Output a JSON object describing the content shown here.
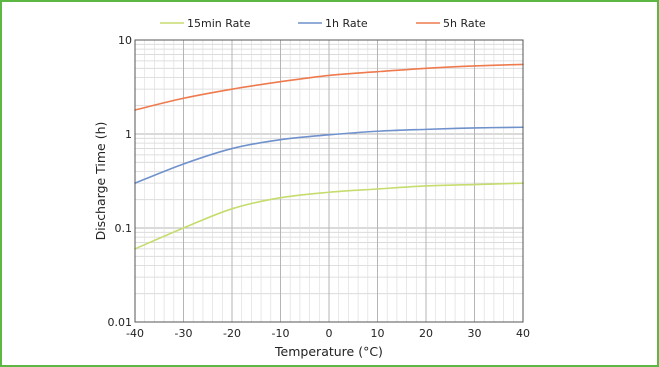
{
  "chart_data": {
    "type": "line",
    "title": "",
    "xlabel": "Temperature (°C)",
    "ylabel": "Discharge Time (h)",
    "xlim": [
      -40,
      40
    ],
    "ylim": [
      0.01,
      10
    ],
    "y_scale": "log",
    "grid": true,
    "legend_position": "top",
    "x_ticks": [
      -40,
      -30,
      -20,
      -10,
      0,
      10,
      20,
      30,
      40
    ],
    "x_tick_labels": [
      "-40",
      "-30",
      "-20",
      "-10",
      "0",
      "10",
      "20",
      "30",
      "40"
    ],
    "y_ticks": [
      0.01,
      0.1,
      1,
      10
    ],
    "y_tick_labels": [
      "0.01",
      "0.1",
      "1",
      "10"
    ],
    "x": [
      -40,
      -30,
      -20,
      -10,
      0,
      10,
      20,
      30,
      40
    ],
    "series": [
      {
        "name": "15min Rate",
        "color": "#c5dc6e",
        "values": [
          0.06,
          0.1,
          0.16,
          0.21,
          0.24,
          0.26,
          0.28,
          0.29,
          0.3
        ]
      },
      {
        "name": "1h Rate",
        "color": "#6f91cc",
        "values": [
          0.3,
          0.48,
          0.7,
          0.87,
          0.98,
          1.07,
          1.12,
          1.16,
          1.18
        ]
      },
      {
        "name": "5h Rate",
        "color": "#ee7a4d",
        "values": [
          1.8,
          2.4,
          3.0,
          3.6,
          4.2,
          4.6,
          5.0,
          5.3,
          5.5
        ]
      }
    ]
  }
}
